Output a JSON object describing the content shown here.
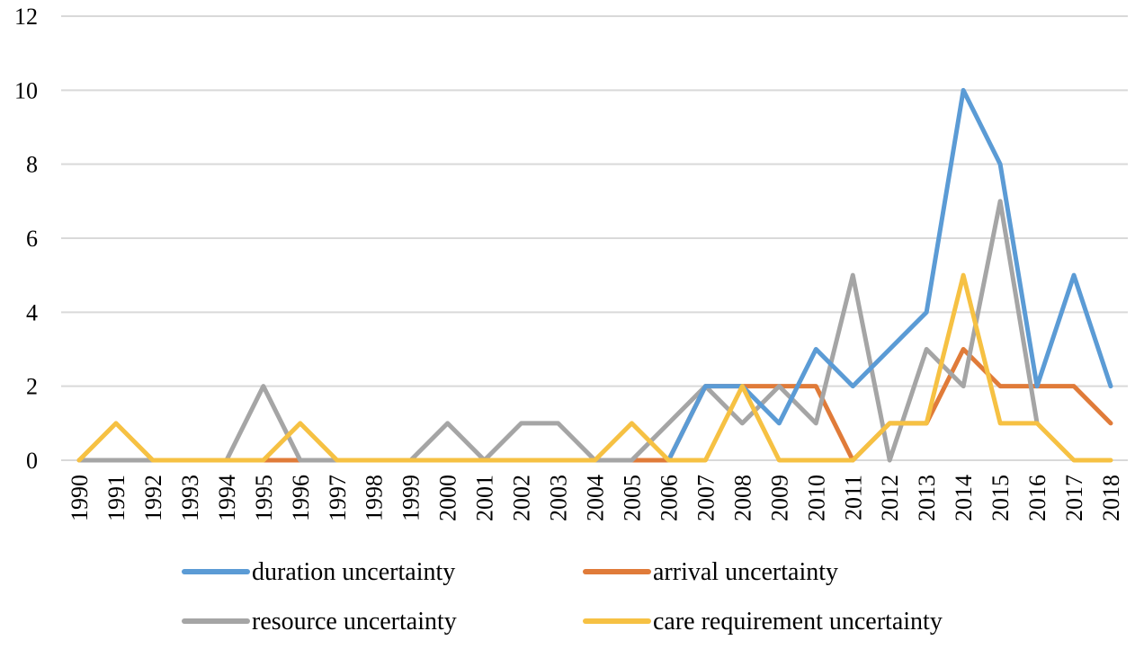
{
  "chart_data": {
    "type": "line",
    "x": [
      "1990",
      "1991",
      "1992",
      "1993",
      "1994",
      "1995",
      "1996",
      "1997",
      "1998",
      "1999",
      "2000",
      "2001",
      "2002",
      "2003",
      "2004",
      "2005",
      "2006",
      "2007",
      "2008",
      "2009",
      "2010",
      "2011",
      "2012",
      "2013",
      "2014",
      "2015",
      "2016",
      "2017",
      "2018"
    ],
    "ylim": [
      0,
      12
    ],
    "yticks": [
      0,
      2,
      4,
      6,
      8,
      10,
      12
    ],
    "grid": true,
    "legend_position": "bottom",
    "series": [
      {
        "name": "arrival uncertainty",
        "color": "#e07b39",
        "values": [
          0,
          0,
          0,
          0,
          0,
          0,
          0,
          0,
          0,
          0,
          0,
          0,
          0,
          0,
          0,
          0,
          0,
          2,
          2,
          2,
          2,
          0,
          1,
          1,
          3,
          2,
          2,
          2,
          1
        ]
      },
      {
        "name": "resource uncertainty",
        "color": "#a5a5a5",
        "values": [
          0,
          0,
          0,
          0,
          0,
          2,
          0,
          0,
          0,
          0,
          1,
          0,
          1,
          1,
          0,
          0,
          1,
          2,
          1,
          2,
          1,
          5,
          0,
          3,
          2,
          7,
          1,
          null,
          null
        ]
      },
      {
        "name": "duration uncertainty",
        "color": "#5b9bd5",
        "values": [
          null,
          null,
          null,
          null,
          null,
          null,
          null,
          null,
          null,
          null,
          null,
          null,
          null,
          null,
          null,
          null,
          0,
          2,
          2,
          1,
          3,
          2,
          3,
          4,
          10,
          8,
          2,
          5,
          2
        ]
      },
      {
        "name": "care requirement uncertainty",
        "color": "#f6c143",
        "values": [
          0,
          1,
          0,
          0,
          0,
          0,
          1,
          0,
          0,
          0,
          0,
          0,
          0,
          0,
          0,
          1,
          0,
          0,
          2,
          0,
          0,
          0,
          1,
          1,
          5,
          1,
          1,
          0,
          0
        ]
      }
    ],
    "legend_order": [
      2,
      0,
      1,
      3
    ]
  }
}
